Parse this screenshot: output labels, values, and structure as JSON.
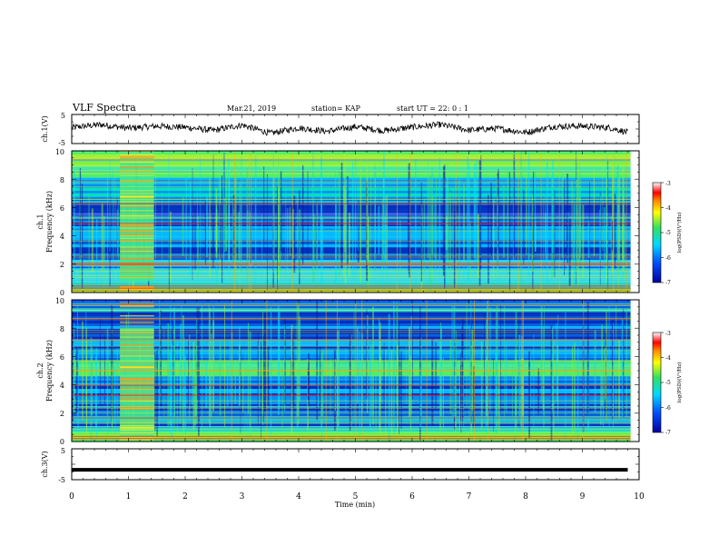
{
  "header": {
    "title": "VLF Spectra",
    "date": "Mar.21, 2019",
    "station": "station= KAP",
    "start": "start  UT =   22: 0  : 1"
  },
  "chart_data": [
    {
      "type": "line",
      "panel": "ch1-waveform",
      "ylabel": "ch.1(V)",
      "ylim": [
        -5,
        5
      ],
      "yticks": [
        "5",
        "-5"
      ],
      "xlim": [
        0,
        10
      ],
      "note_series": "noisy voltage trace spanning ~-2 to 2 V",
      "x": [
        0,
        0.5,
        1,
        1.5,
        2,
        2.5,
        3,
        3.5,
        4,
        4.5,
        5,
        5.5,
        6,
        6.5,
        7,
        7.5,
        8,
        8.5,
        9,
        9.5,
        9.8
      ],
      "y": [
        0.5,
        1.5,
        0.3,
        1.0,
        0.6,
        -0.5,
        1.4,
        -1.5,
        0.4,
        -0.8,
        0.8,
        -0.6,
        0.6,
        1.5,
        -0.4,
        0.2,
        -1.2,
        0.9,
        1.0,
        0.4,
        -1.2
      ]
    },
    {
      "type": "heatmap",
      "panel": "ch1-spectrogram",
      "ylabel_top": "ch.1",
      "ylabel": "Frequency (kHz)",
      "ylim": [
        0,
        10
      ],
      "yticks": [
        "0",
        "2",
        "4",
        "6",
        "8",
        "10"
      ],
      "xlim": [
        0,
        10
      ],
      "colorbar": {
        "label": "log(PSD)(V²/Hz)",
        "range": [
          -7,
          -3
        ],
        "ticks": [
          "-3",
          "-4",
          "-5",
          "-6",
          "-7"
        ]
      }
    },
    {
      "type": "heatmap",
      "panel": "ch2-spectrogram",
      "ylabel_top": "ch.2",
      "ylabel": "Frequency (kHz)",
      "ylim": [
        0,
        10
      ],
      "yticks": [
        "0",
        "2",
        "4",
        "6",
        "8",
        "10"
      ],
      "xlim": [
        0,
        10
      ],
      "colorbar": {
        "label": "log(PSD)(V²/Hz)",
        "range": [
          -7,
          -3
        ],
        "ticks": [
          "-3",
          "-4",
          "-5",
          "-6",
          "-7"
        ]
      }
    },
    {
      "type": "line",
      "panel": "ch3-waveform",
      "ylabel": "ch.3(V)",
      "ylim": [
        -5,
        5
      ],
      "yticks": [
        "5",
        "-5"
      ],
      "xlim": [
        0,
        10
      ],
      "x": [
        0,
        9.8
      ],
      "y": [
        -1.8,
        -1.8
      ]
    }
  ],
  "xaxis": {
    "label": "Time  (min)",
    "ticks": [
      "0",
      "1",
      "2",
      "3",
      "4",
      "5",
      "6",
      "7",
      "8",
      "9",
      "10"
    ]
  }
}
